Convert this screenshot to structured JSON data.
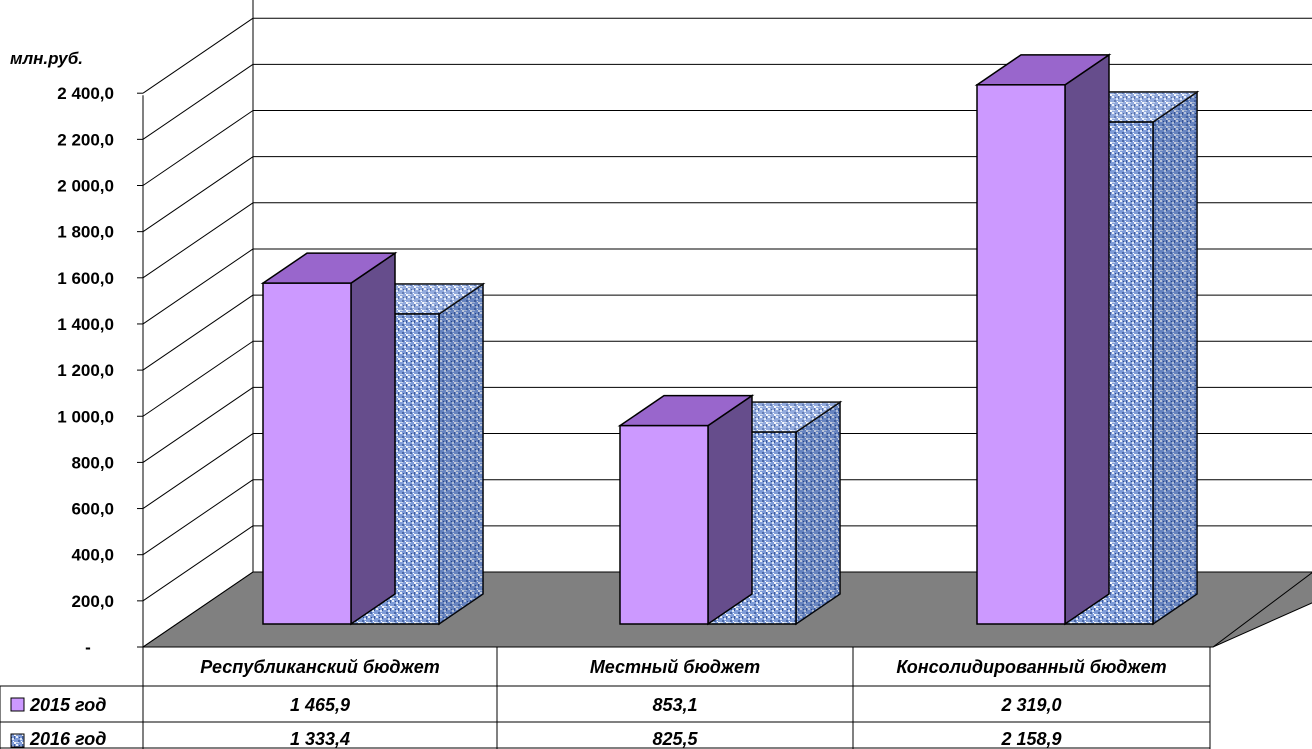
{
  "chart_data": {
    "type": "bar",
    "title": "",
    "ylabel": "млн.руб.",
    "xlabel": "",
    "ylim": [
      0,
      2400
    ],
    "yticks": [
      "-",
      "200,0",
      "400,0",
      "600,0",
      "800,0",
      "1 000,0",
      "1 200,0",
      "1 400,0",
      "1 600,0",
      "1 800,0",
      "2 000,0",
      "2 200,0",
      "2 400,0"
    ],
    "categories": [
      "Республиканский бюджет",
      "Местный бюджет",
      "Консолидированный бюджет"
    ],
    "series": [
      {
        "name": "2015 год",
        "values": [
          1465.9,
          853.1,
          2319.0
        ],
        "labels": [
          "1 465,9",
          "853,1",
          "2 319,0"
        ],
        "color": "#cc99ff"
      },
      {
        "name": "2016 год",
        "values": [
          1333.4,
          825.5,
          2158.9
        ],
        "labels": [
          "1 333,4",
          "825,5",
          "2 158,9"
        ],
        "color": "#6f8fd0"
      }
    ],
    "grid": true,
    "legend": "data-table",
    "colors": {
      "floor": "#808080",
      "grid": "#000000",
      "bar2015_top": "#9966cc",
      "bar2015_side": "#664d8c",
      "bar2016_front": "#6f8fd0",
      "bar2016_side": "#5a78b8",
      "bar2016_top": "#7f9fe0"
    }
  }
}
